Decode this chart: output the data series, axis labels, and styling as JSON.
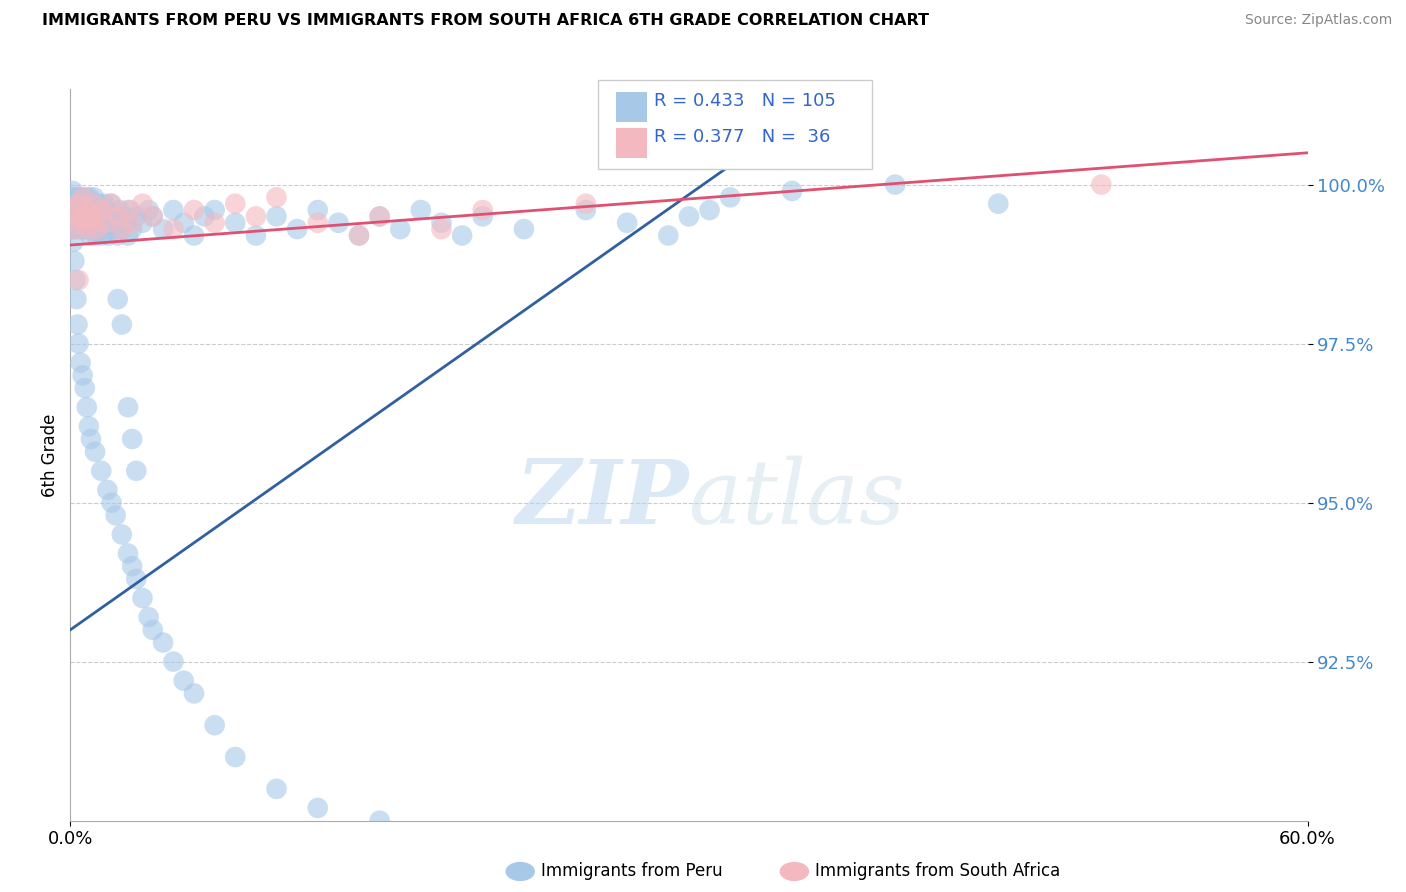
{
  "title": "IMMIGRANTS FROM PERU VS IMMIGRANTS FROM SOUTH AFRICA 6TH GRADE CORRELATION CHART",
  "source": "Source: ZipAtlas.com",
  "ylabel": "6th Grade",
  "watermark": "ZIPatlas",
  "xlim": [
    0.0,
    60.0
  ],
  "ylim": [
    90.0,
    101.5
  ],
  "yticks": [
    92.5,
    95.0,
    97.5,
    100.0
  ],
  "ytick_labels": [
    "92.5%",
    "95.0%",
    "97.5%",
    "100.0%"
  ],
  "xtick_labels": [
    "0.0%",
    "60.0%"
  ],
  "peru_R": 0.433,
  "peru_N": 105,
  "sa_R": 0.377,
  "sa_N": 36,
  "peru_color": "#a8c8e8",
  "sa_color": "#f4b8c0",
  "peru_line_color": "#3060a0",
  "sa_line_color": "#e05070",
  "peru_scatter_x": [
    0.05,
    0.08,
    0.1,
    0.12,
    0.15,
    0.18,
    0.2,
    0.22,
    0.25,
    0.28,
    0.3,
    0.33,
    0.35,
    0.38,
    0.4,
    0.42,
    0.45,
    0.48,
    0.5,
    0.52,
    0.55,
    0.58,
    0.6,
    0.65,
    0.7,
    0.72,
    0.75,
    0.78,
    0.8,
    0.82,
    0.85,
    0.88,
    0.9,
    0.92,
    0.95,
    0.98,
    1.0,
    1.05,
    1.1,
    1.15,
    1.2,
    1.25,
    1.3,
    1.35,
    1.4,
    1.45,
    1.5,
    1.55,
    1.6,
    1.65,
    1.7,
    1.75,
    1.8,
    1.85,
    1.9,
    1.95,
    2.0,
    2.1,
    2.2,
    2.3,
    2.4,
    2.5,
    2.6,
    2.7,
    2.8,
    2.9,
    3.0,
    3.2,
    3.5,
    3.8,
    4.0,
    4.5,
    5.0,
    5.5,
    6.0,
    6.5,
    7.0,
    8.0,
    9.0,
    10.0,
    11.0,
    12.0,
    13.0,
    14.0,
    15.0,
    16.0,
    17.0,
    18.0,
    19.0,
    20.0,
    22.0,
    25.0,
    27.0,
    29.0,
    30.0,
    31.0,
    32.0,
    35.0,
    40.0,
    45.0,
    2.3,
    2.5,
    2.8,
    3.0,
    3.2
  ],
  "peru_scatter_y": [
    99.8,
    99.5,
    99.6,
    99.9,
    99.7,
    99.4,
    99.3,
    99.8,
    99.5,
    99.6,
    99.7,
    99.4,
    99.5,
    99.8,
    99.6,
    99.3,
    99.4,
    99.7,
    99.5,
    99.8,
    99.6,
    99.3,
    99.4,
    99.7,
    99.5,
    99.3,
    99.6,
    99.8,
    99.4,
    99.7,
    99.5,
    99.3,
    99.6,
    99.8,
    99.4,
    99.2,
    99.5,
    99.3,
    99.6,
    99.8,
    99.4,
    99.2,
    99.5,
    99.7,
    99.3,
    99.6,
    99.4,
    99.2,
    99.5,
    99.7,
    99.3,
    99.6,
    99.4,
    99.2,
    99.5,
    99.7,
    99.3,
    99.5,
    99.4,
    99.2,
    99.6,
    99.3,
    99.5,
    99.4,
    99.2,
    99.6,
    99.3,
    99.5,
    99.4,
    99.6,
    99.5,
    99.3,
    99.6,
    99.4,
    99.2,
    99.5,
    99.6,
    99.4,
    99.2,
    99.5,
    99.3,
    99.6,
    99.4,
    99.2,
    99.5,
    99.3,
    99.6,
    99.4,
    99.2,
    99.5,
    99.3,
    99.6,
    99.4,
    99.2,
    99.5,
    99.6,
    99.8,
    99.9,
    100.0,
    99.7,
    98.2,
    97.8,
    96.5,
    96.0,
    95.5
  ],
  "peru_scatter_y2": [
    99.5,
    99.3,
    99.1,
    98.8,
    98.5,
    98.2,
    97.8,
    97.5,
    97.2,
    97.0,
    96.8,
    96.5,
    96.2,
    96.0,
    95.8,
    95.5,
    95.2,
    95.0,
    94.8,
    94.5,
    94.2,
    94.0,
    93.8,
    93.5,
    93.2,
    93.0,
    92.8,
    92.5,
    92.2,
    92.0,
    91.5,
    91.0,
    90.5,
    90.2,
    90.0
  ],
  "peru_scatter_x2": [
    0.05,
    0.1,
    0.15,
    0.2,
    0.25,
    0.3,
    0.35,
    0.4,
    0.5,
    0.6,
    0.7,
    0.8,
    0.9,
    1.0,
    1.2,
    1.5,
    1.8,
    2.0,
    2.2,
    2.5,
    2.8,
    3.0,
    3.2,
    3.5,
    3.8,
    4.0,
    4.5,
    5.0,
    5.5,
    6.0,
    7.0,
    8.0,
    10.0,
    12.0,
    15.0
  ],
  "sa_scatter_x": [
    0.1,
    0.2,
    0.3,
    0.4,
    0.5,
    0.6,
    0.7,
    0.8,
    0.9,
    1.0,
    1.1,
    1.2,
    1.3,
    1.5,
    1.7,
    2.0,
    2.3,
    2.5,
    2.8,
    3.0,
    3.5,
    4.0,
    5.0,
    6.0,
    7.0,
    8.0,
    9.0,
    10.0,
    12.0,
    14.0,
    15.0,
    18.0,
    20.0,
    25.0,
    50.0,
    0.4
  ],
  "sa_scatter_y": [
    99.6,
    99.3,
    99.5,
    99.7,
    99.4,
    99.8,
    99.5,
    99.3,
    99.6,
    99.4,
    99.7,
    99.5,
    99.3,
    99.6,
    99.4,
    99.7,
    99.5,
    99.3,
    99.6,
    99.4,
    99.7,
    99.5,
    99.3,
    99.6,
    99.4,
    99.7,
    99.5,
    99.8,
    99.4,
    99.2,
    99.5,
    99.3,
    99.6,
    99.7,
    100.0,
    98.5
  ],
  "peru_line_x": [
    0.0,
    32.0
  ],
  "peru_line_y": [
    93.0,
    100.3
  ],
  "sa_line_x": [
    0.0,
    60.0
  ],
  "sa_line_y": [
    99.05,
    100.5
  ]
}
